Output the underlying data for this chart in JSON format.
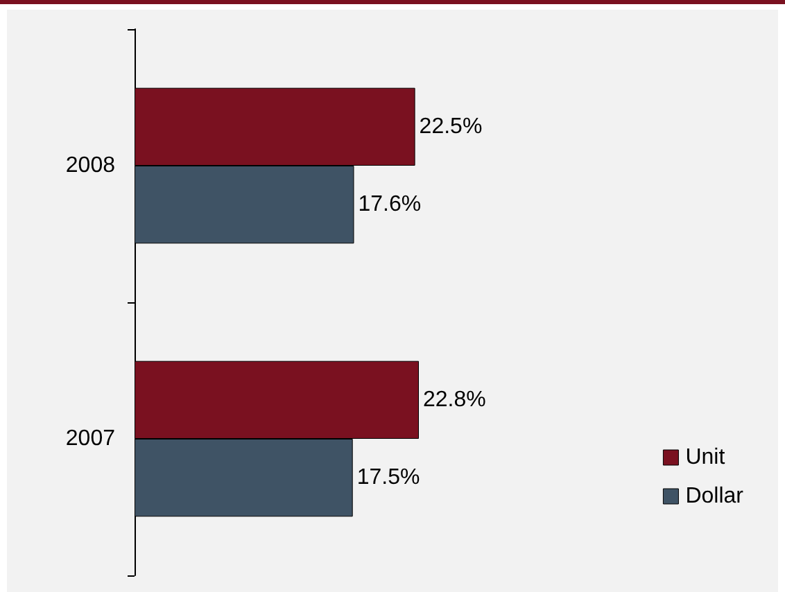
{
  "chart_data": {
    "type": "bar",
    "orientation": "horizontal",
    "categories": [
      "2008",
      "2007"
    ],
    "series": [
      {
        "name": "Unit",
        "color": "#7a1120",
        "values": [
          22.5,
          22.8
        ],
        "value_labels": [
          "22.5%",
          "22.8%"
        ]
      },
      {
        "name": "Dollar",
        "color": "#3f5365",
        "values": [
          17.6,
          17.5
        ],
        "value_labels": [
          "17.6%",
          "17.5%"
        ]
      }
    ],
    "legend": "bottom right"
  }
}
